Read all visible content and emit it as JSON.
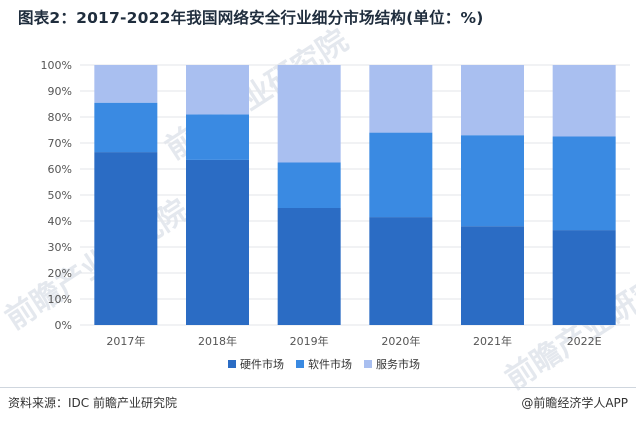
{
  "title": "图表2：2017-2022年我国网络安全行业细分市场结构(单位：%)",
  "source": "资料来源：IDC 前瞻产业研究院",
  "credit": "@前瞻经济学人APP",
  "watermark": "前瞻产业研究院",
  "colors": {
    "hardware": "#2b6cc4",
    "software": "#3a8ae2",
    "service": "#a9bff0",
    "grid": "#e3e6ea",
    "axis_text": "#555555"
  },
  "chart_data": {
    "type": "bar",
    "stacked": true,
    "title": "图表2：2017-2022年我国网络安全行业细分市场结构(单位：%)",
    "categories": [
      "2017年",
      "2018年",
      "2019年",
      "2020年",
      "2021年",
      "2022E"
    ],
    "series": [
      {
        "name": "硬件市场",
        "values": [
          66.5,
          63.5,
          45,
          41.5,
          38,
          36.5
        ]
      },
      {
        "name": "软件市场",
        "values": [
          19,
          17.5,
          17.5,
          32.5,
          35,
          36
        ]
      },
      {
        "name": "服务市场",
        "values": [
          14.5,
          19,
          37.5,
          26,
          27,
          27.5
        ]
      }
    ],
    "ylim": [
      0,
      100
    ],
    "yticks": [
      "0%",
      "10%",
      "20%",
      "30%",
      "40%",
      "50%",
      "60%",
      "70%",
      "80%",
      "90%",
      "100%"
    ],
    "grid": true,
    "legend": "bottom"
  }
}
